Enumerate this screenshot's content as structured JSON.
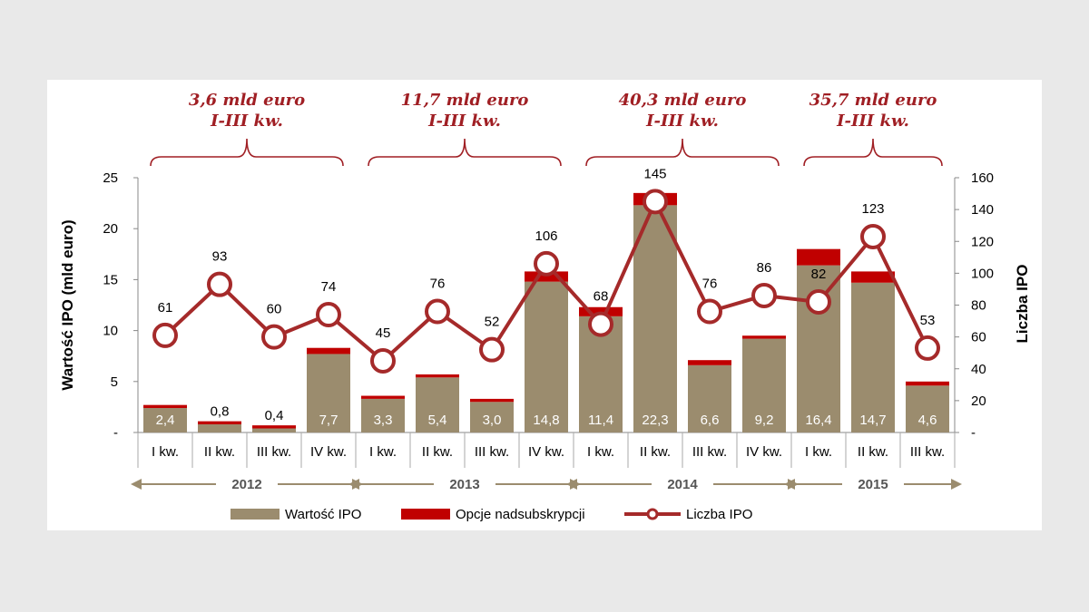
{
  "chart_data": {
    "type": "bar+line",
    "categories": [
      "I kw.",
      "II kw.",
      "III kw.",
      "IV kw.",
      "I kw.",
      "II kw.",
      "III kw.",
      "IV kw.",
      "I kw.",
      "II kw.",
      "III kw.",
      "IV kw.",
      "I kw.",
      "II kw.",
      "III kw."
    ],
    "years": [
      {
        "label": "2012",
        "quarters": 4
      },
      {
        "label": "2013",
        "quarters": 4
      },
      {
        "label": "2014",
        "quarters": 4
      },
      {
        "label": "2015",
        "quarters": 3
      }
    ],
    "series": [
      {
        "name": "Wartość IPO",
        "kind": "bar",
        "axis": "left",
        "color": "#9b8c6e",
        "values": [
          2.4,
          0.8,
          0.4,
          7.7,
          3.3,
          5.4,
          3.0,
          14.8,
          11.4,
          22.3,
          6.6,
          9.2,
          16.4,
          14.7,
          4.6
        ],
        "labels": [
          "2,4",
          "0,8",
          "0,4",
          "7,7",
          "3,3",
          "5,4",
          "3,0",
          "14,8",
          "11,4",
          "22,3",
          "6,6",
          "9,2",
          "16,4",
          "14,7",
          "4,6"
        ]
      },
      {
        "name": "Opcje nadsubskrypcji",
        "kind": "bar-stacked",
        "axis": "left",
        "color": "#c00000",
        "values": [
          0.3,
          0.3,
          0.3,
          0.6,
          0.3,
          0.3,
          0.3,
          1.0,
          0.9,
          1.2,
          0.5,
          0.3,
          1.6,
          1.1,
          0.4
        ]
      },
      {
        "name": "Liczba IPO",
        "kind": "line",
        "axis": "right",
        "color": "#a52a2a",
        "values": [
          61,
          93,
          60,
          74,
          45,
          76,
          52,
          106,
          68,
          145,
          76,
          86,
          82,
          123,
          53
        ]
      }
    ],
    "y_left": {
      "label": "Wartość IPO (mld euro)",
      "min": 0,
      "max": 25,
      "ticks": [
        "-",
        "5",
        "10",
        "15",
        "20",
        "25"
      ]
    },
    "y_right": {
      "label": "Liczba IPO",
      "min": 0,
      "max": 160,
      "ticks": [
        "-",
        "20",
        "40",
        "60",
        "80",
        "100",
        "120",
        "140",
        "160"
      ]
    },
    "annotations": [
      {
        "line1": "3,6 mld  euro",
        "line2": "I-III kw.",
        "year": "2012"
      },
      {
        "line1": "11,7 mld euro",
        "line2": "I-III kw.",
        "year": "2013"
      },
      {
        "line1": "40,3 mld euro",
        "line2": "I-III kw.",
        "year": "2014"
      },
      {
        "line1": "35,7 mld euro",
        "line2": "I-III kw.",
        "year": "2015"
      }
    ],
    "legend": [
      "Wartość IPO",
      "Opcje nadsubskrypcji",
      "Liczba IPO"
    ]
  }
}
